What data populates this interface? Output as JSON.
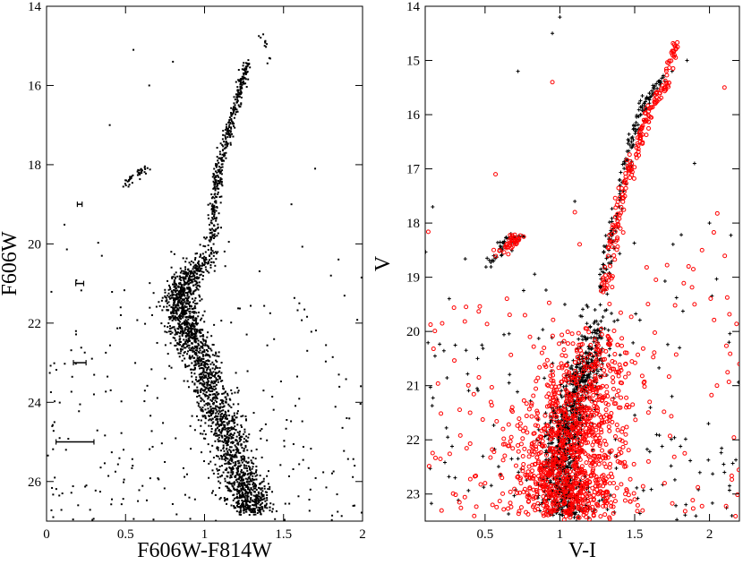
{
  "chart_data": [
    {
      "type": "scatter",
      "title": "",
      "xlabel": "F606W-F814W",
      "ylabel": "F606W",
      "xlim": [
        0,
        2
      ],
      "ylim": [
        27,
        14
      ],
      "y_inverted": true,
      "x_ticks": [
        0,
        0.5,
        1,
        1.5,
        2
      ],
      "x_tick_labels": [
        "0",
        "0.5",
        "1",
        "1.5",
        "2"
      ],
      "y_ticks": [
        14,
        16,
        18,
        20,
        22,
        24,
        26
      ],
      "y_tick_labels": [
        "14",
        "16",
        "18",
        "20",
        "22",
        "24",
        "26"
      ],
      "marker_color": "#000000",
      "error_bars": [
        {
          "x": 0.21,
          "y": 19.0,
          "xerr": 0.015
        },
        {
          "x": 0.21,
          "y": 21.0,
          "xerr": 0.025
        },
        {
          "x": 0.21,
          "y": 23.0,
          "xerr": 0.04
        },
        {
          "x": 0.18,
          "y": 25.0,
          "xerr": 0.12
        }
      ],
      "series": [
        {
          "marker": "dot",
          "color": "#000000",
          "main_sequence": [
            [
              1.3,
              26.8
            ],
            [
              1.24,
              26.0
            ],
            [
              1.16,
              25.0
            ],
            [
              1.07,
              24.0
            ],
            [
              0.98,
              23.0
            ],
            [
              0.9,
              22.3
            ],
            [
              0.85,
              21.7
            ],
            [
              0.84,
              21.3
            ],
            [
              0.87,
              21.0
            ],
            [
              0.93,
              20.7
            ],
            [
              1.0,
              20.4
            ],
            [
              1.05,
              20.0
            ]
          ],
          "red_giant_branch": [
            [
              1.05,
              20.0
            ],
            [
              1.06,
              19.0
            ],
            [
              1.08,
              18.3
            ],
            [
              1.12,
              17.6
            ],
            [
              1.17,
              16.9
            ],
            [
              1.23,
              16.1
            ],
            [
              1.27,
              15.4
            ]
          ],
          "horizontal_branch": [
            [
              0.48,
              18.55
            ],
            [
              0.52,
              18.35
            ],
            [
              0.56,
              18.22
            ],
            [
              0.6,
              18.15
            ],
            [
              0.64,
              18.1
            ]
          ],
          "asymptotic_giant_branch": [
            [
              1.35,
              14.75
            ],
            [
              1.38,
              14.9
            ],
            [
              1.4,
              15.1
            ],
            [
              1.41,
              15.4
            ]
          ],
          "scattered_outliers": [
            [
              0.05,
              24.5
            ],
            [
              0.1,
              26.3
            ],
            [
              0.3,
              23.8
            ],
            [
              0.35,
              20.3
            ],
            [
              0.4,
              17.0
            ],
            [
              0.47,
              21.8
            ],
            [
              0.55,
              15.1
            ],
            [
              0.65,
              16.0
            ],
            [
              0.7,
              22.5
            ],
            [
              0.75,
              23.4
            ],
            [
              0.8,
              15.4
            ],
            [
              1.55,
              19.0
            ],
            [
              1.6,
              21.5
            ],
            [
              1.65,
              22.7
            ],
            [
              1.7,
              18.1
            ],
            [
              1.8,
              20.8
            ],
            [
              1.85,
              23.3
            ],
            [
              1.9,
              24.4
            ],
            [
              1.95,
              25.6
            ],
            [
              0.2,
              26.6
            ]
          ]
        }
      ]
    },
    {
      "type": "scatter",
      "title": "",
      "xlabel": "V-I",
      "ylabel": "V",
      "xlim": [
        0.1,
        2.2
      ],
      "ylim": [
        23.5,
        14
      ],
      "y_inverted": true,
      "x_ticks": [
        0.5,
        1,
        1.5,
        2
      ],
      "x_tick_labels": [
        "0.5",
        "1",
        "1.5",
        "2"
      ],
      "y_ticks": [
        14,
        15,
        16,
        17,
        18,
        19,
        20,
        21,
        22,
        23
      ],
      "y_tick_labels": [
        "14",
        "15",
        "16",
        "17",
        "18",
        "19",
        "20",
        "21",
        "22",
        "23"
      ],
      "series": [
        {
          "marker": "plus",
          "color": "#000000",
          "main_sequence": [
            [
              1.06,
              23.4
            ],
            [
              1.03,
              23.0
            ],
            [
              1.01,
              22.5
            ],
            [
              1.02,
              22.0
            ],
            [
              1.05,
              21.6
            ],
            [
              1.1,
              21.2
            ],
            [
              1.16,
              20.8
            ],
            [
              1.2,
              20.5
            ],
            [
              1.23,
              20.1
            ],
            [
              1.26,
              19.7
            ],
            [
              1.28,
              19.3
            ]
          ],
          "red_giant_branch": [
            [
              1.28,
              19.3
            ],
            [
              1.32,
              18.6
            ],
            [
              1.36,
              18.0
            ],
            [
              1.41,
              17.3
            ],
            [
              1.47,
              16.6
            ],
            [
              1.53,
              16.0
            ],
            [
              1.6,
              15.6
            ],
            [
              1.7,
              15.3
            ]
          ],
          "horizontal_branch": [
            [
              0.55,
              18.7
            ],
            [
              0.6,
              18.45
            ],
            [
              0.65,
              18.35
            ],
            [
              0.7,
              18.3
            ],
            [
              0.75,
              18.2
            ]
          ],
          "scattered_outliers": [
            [
              0.15,
              17.7
            ],
            [
              0.3,
              22.7
            ],
            [
              0.72,
              15.2
            ],
            [
              0.95,
              14.5
            ],
            [
              1.0,
              14.2
            ],
            [
              1.1,
              17.6
            ],
            [
              1.75,
              15.2
            ],
            [
              1.85,
              15.0
            ],
            [
              1.9,
              16.9
            ],
            [
              2.0,
              18.0
            ],
            [
              2.1,
              22.6
            ],
            [
              2.15,
              23.4
            ],
            [
              0.45,
              20.5
            ],
            [
              1.8,
              20.3
            ]
          ]
        },
        {
          "marker": "open-circle",
          "color": "#ff0000",
          "main_sequence": [
            [
              1.08,
              23.4
            ],
            [
              1.05,
              22.9
            ],
            [
              1.04,
              22.4
            ],
            [
              1.06,
              21.9
            ],
            [
              1.1,
              21.5
            ],
            [
              1.16,
              21.1
            ],
            [
              1.2,
              20.7
            ],
            [
              1.24,
              20.3
            ],
            [
              1.27,
              19.9
            ]
          ],
          "red_giant_branch": [
            [
              1.3,
              19.3
            ],
            [
              1.34,
              18.6
            ],
            [
              1.39,
              17.9
            ],
            [
              1.45,
              17.2
            ],
            [
              1.52,
              16.5
            ],
            [
              1.6,
              15.9
            ],
            [
              1.7,
              15.5
            ],
            [
              1.78,
              14.65
            ]
          ],
          "horizontal_branch": [
            [
              0.58,
              18.55
            ],
            [
              0.64,
              18.45
            ],
            [
              0.68,
              18.35
            ],
            [
              0.72,
              18.25
            ]
          ],
          "scattered_outliers": [
            [
              0.57,
              17.1
            ],
            [
              0.95,
              15.4
            ],
            [
              1.1,
              17.8
            ],
            [
              1.6,
              21.3
            ],
            [
              1.7,
              22.8
            ],
            [
              1.9,
              19.5
            ],
            [
              2.05,
              21.0
            ],
            [
              2.1,
              15.5
            ],
            [
              0.4,
              21.5
            ],
            [
              0.5,
              22.8
            ],
            [
              0.55,
              23.2
            ],
            [
              0.8,
              20.1
            ],
            [
              1.95,
              18.5
            ],
            [
              2.2,
              20.6
            ],
            [
              0.62,
              21.8
            ],
            [
              1.5,
              23.1
            ]
          ]
        }
      ]
    }
  ]
}
